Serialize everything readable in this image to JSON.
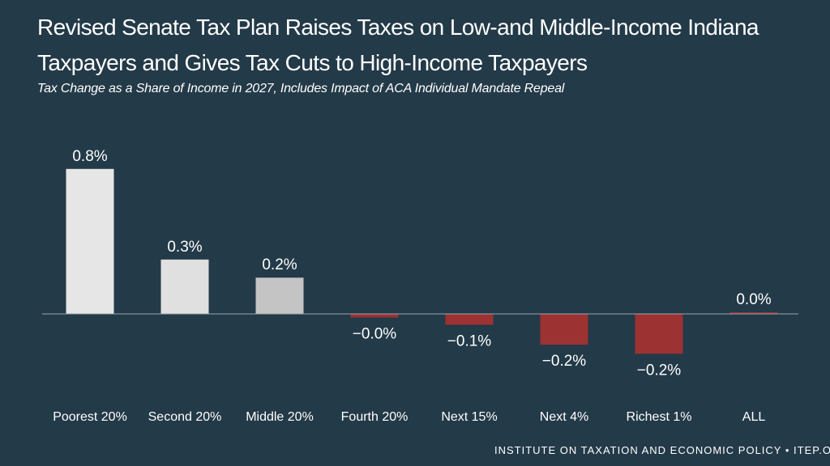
{
  "chart_data": {
    "type": "bar",
    "title": "Revised Senate Tax Plan Raises Taxes on Low-and Middle-Income Indiana Taxpayers and Gives Tax Cuts to High-Income Taxpayers",
    "subtitle": "Tax Change as a Share of Income in 2027, Includes Impact of ACA Individual Mandate Repeal",
    "categories": [
      "Poorest 20%",
      "Second 20%",
      "Middle 20%",
      "Fourth 20%",
      "Next 15%",
      "Next 4%",
      "Richest 1%",
      "ALL"
    ],
    "values": [
      0.8,
      0.3,
      0.2,
      -0.02,
      -0.06,
      -0.17,
      -0.22,
      0.0
    ],
    "data_labels": [
      "0.8%",
      "0.3%",
      "0.2%",
      "−0.0%",
      "−0.1%",
      "−0.2%",
      "−0.2%",
      "0.0%"
    ],
    "colors": [
      "#e6e6e6",
      "#e0e0e0",
      "#c4c4c4",
      "#9c3232",
      "#9c3232",
      "#9c3232",
      "#9c3232",
      "#9c3232"
    ],
    "xlabel": "",
    "ylabel": "",
    "ylim": [
      -0.3,
      0.9
    ],
    "grid": false,
    "legend": "none"
  },
  "colors": {
    "background": "#233a48",
    "axis": "#9aa7ae",
    "text": "#ffffff"
  },
  "footer": "INSTITUTE ON TAXATION AND ECONOMIC POLICY • ITEP.ORG"
}
